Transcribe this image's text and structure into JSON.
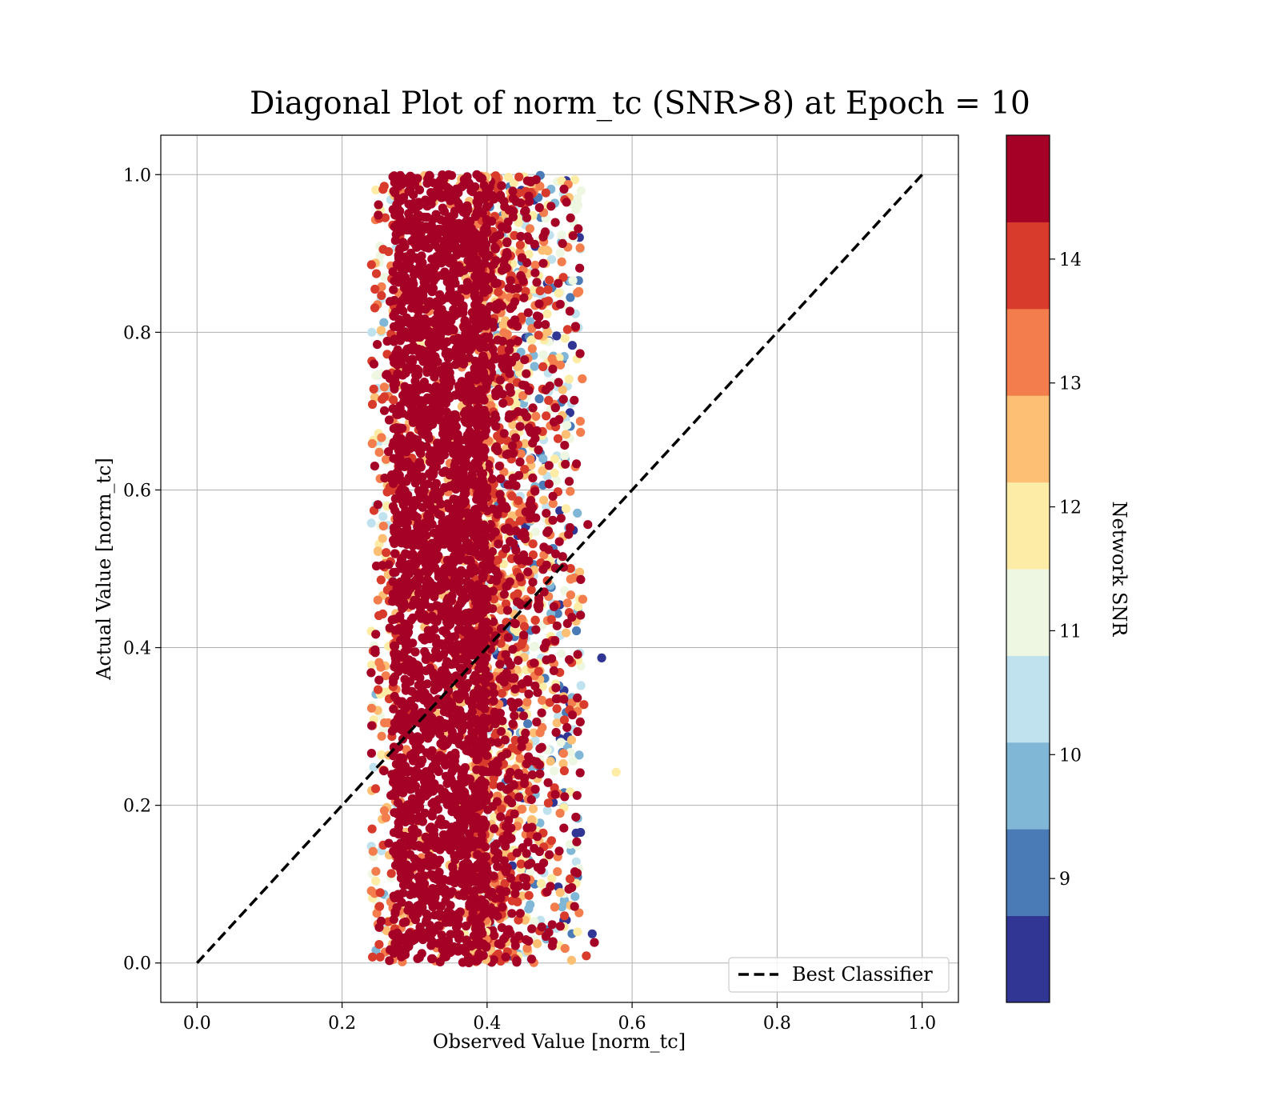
{
  "chart_data": {
    "type": "scatter",
    "title": "Diagonal Plot of norm_tc (SNR>8) at Epoch = 10",
    "xlabel": "Observed Value [norm_tc]",
    "ylabel": "Actual Value [norm_tc]",
    "xlim": [
      -0.05,
      1.05
    ],
    "ylim": [
      -0.05,
      1.05
    ],
    "xticks": [
      "0.0",
      "0.2",
      "0.4",
      "0.6",
      "0.8",
      "1.0"
    ],
    "yticks": [
      "0.0",
      "0.2",
      "0.4",
      "0.6",
      "0.8",
      "1.0"
    ],
    "grid": true,
    "legend": {
      "position": "lower-right",
      "entries": [
        "Best Classifier"
      ]
    },
    "reference_line": {
      "name": "Best Classifier",
      "x": [
        0.0,
        1.0
      ],
      "y": [
        0.0,
        1.0
      ],
      "style": "dashed",
      "color": "#000000"
    },
    "scatter_summary": {
      "x_range": [
        0.24,
        0.58
      ],
      "y_range": [
        0.0,
        1.0
      ],
      "dense_core_x": [
        0.27,
        0.4
      ],
      "color_by": "Network SNR",
      "note_high_snr_in_core": true
    },
    "outliers": [
      {
        "x": 0.558,
        "y": 0.387,
        "snr": 8.5
      },
      {
        "x": 0.578,
        "y": 0.242,
        "snr": 11.8
      },
      {
        "x": 0.548,
        "y": 0.026,
        "snr": 14.5
      },
      {
        "x": 0.545,
        "y": 0.037,
        "snr": 8.5
      }
    ],
    "colorbar": {
      "label": "Network SNR",
      "range": [
        8.0,
        15.0
      ],
      "ticks": [
        "9",
        "10",
        "11",
        "12",
        "13",
        "14"
      ],
      "colors": [
        "#313695",
        "#4575b4",
        "#74add1",
        "#abd9e9",
        "#e0f3f8",
        "#fee090",
        "#fdae61",
        "#f46d43",
        "#d73027",
        "#a50026"
      ],
      "bands_hex": [
        "#313695",
        "#4a7bb7",
        "#80b6d6",
        "#c0e2ee",
        "#eef7e1",
        "#fdeca6",
        "#fcbf73",
        "#f47d4d",
        "#d83a2b",
        "#a50026"
      ]
    }
  }
}
